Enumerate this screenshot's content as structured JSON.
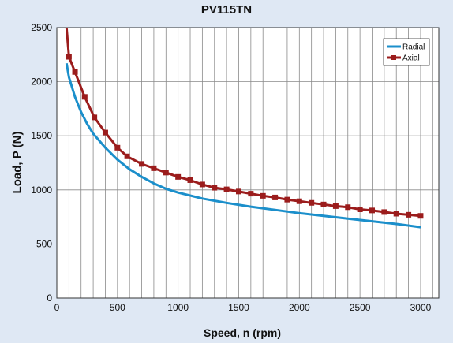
{
  "chart_data": {
    "type": "line",
    "title": "PV115TN",
    "xlabel": "Speed, n (rpm)",
    "ylabel": "Load, P (N)",
    "xlim": [
      0,
      3150
    ],
    "ylim": [
      0,
      2500
    ],
    "x_ticks": [
      "0",
      "500",
      "1000",
      "1500",
      "2000",
      "2500",
      "3000"
    ],
    "y_ticks": [
      "0",
      "500",
      "1000",
      "1500",
      "2000",
      "2500"
    ],
    "grid": true,
    "legend_position": "top-right",
    "series": [
      {
        "name": "Radial",
        "color": "#1b8fcb",
        "marker": "none",
        "x": [
          80,
          100,
          150,
          200,
          250,
          300,
          400,
          500,
          600,
          700,
          800,
          900,
          1000,
          1200,
          1400,
          1600,
          1800,
          2000,
          2200,
          2400,
          2600,
          2800,
          3000
        ],
        "y": [
          2170,
          2040,
          1860,
          1720,
          1610,
          1520,
          1390,
          1280,
          1190,
          1120,
          1060,
          1010,
          975,
          920,
          880,
          845,
          815,
          785,
          760,
          735,
          710,
          685,
          655
        ]
      },
      {
        "name": "Axial",
        "color": "#9b1c1c",
        "marker": "square",
        "x": [
          80,
          100,
          150,
          230,
          310,
          400,
          500,
          580,
          700,
          800,
          900,
          1000,
          1100,
          1200,
          1300,
          1400,
          1500,
          1600,
          1700,
          1800,
          1900,
          2000,
          2100,
          2200,
          2300,
          2400,
          2500,
          2600,
          2700,
          2800,
          2900,
          3000
        ],
        "y": [
          2500,
          2230,
          2090,
          1860,
          1670,
          1530,
          1390,
          1310,
          1240,
          1200,
          1160,
          1120,
          1090,
          1050,
          1020,
          1005,
          985,
          965,
          945,
          930,
          910,
          895,
          880,
          865,
          850,
          840,
          820,
          810,
          795,
          780,
          770,
          760
        ]
      }
    ]
  }
}
